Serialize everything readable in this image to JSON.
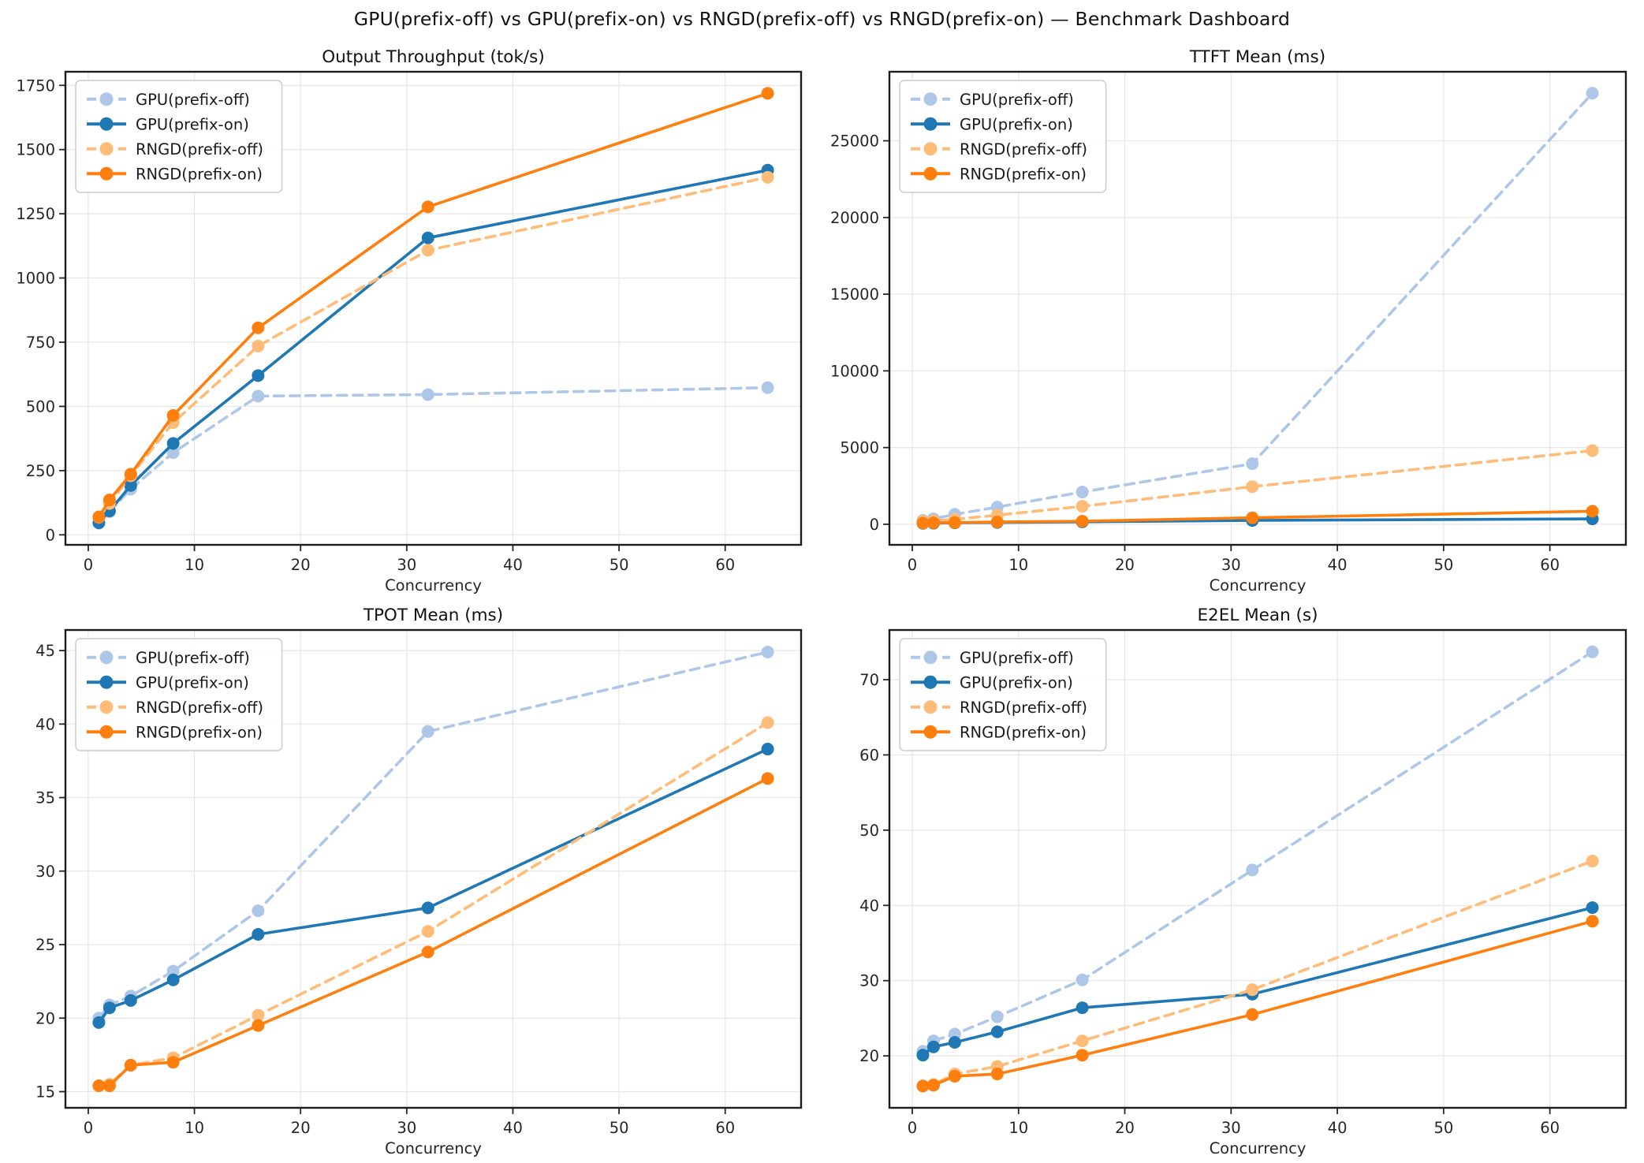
{
  "title": "GPU(prefix-off) vs GPU(prefix-on) vs RNGD(prefix-off) vs RNGD(prefix-on) — Benchmark Dashboard",
  "x_axis_label": "Concurrency",
  "concurrency_levels": [
    1,
    2,
    4,
    8,
    16,
    32,
    64
  ],
  "palette": {
    "gpu_prefix_off": "#aec7e8",
    "gpu_prefix_on": "#1f77b4",
    "rngd_prefix_off": "#ffbb78",
    "rngd_prefix_on": "#ff7f0e",
    "grid": "#e6e6e6",
    "spine": "#1c1c1c",
    "tick_text": "#262626",
    "title_text": "#111111"
  },
  "legend_labels": [
    "GPU(prefix-off)",
    "GPU(prefix-on)",
    "RNGD(prefix-off)",
    "RNGD(prefix-on)"
  ],
  "chart_data": [
    {
      "id": "throughput",
      "panel": "tl",
      "type": "line",
      "title": "Output Throughput (tok/s)",
      "xlabel": "Concurrency",
      "x": [
        1,
        2,
        4,
        8,
        16,
        32,
        64
      ],
      "xticks": [
        0,
        10,
        20,
        30,
        40,
        50,
        60
      ],
      "xlim": [
        -2.15,
        67.15
      ],
      "yticks": [
        0,
        250,
        500,
        750,
        1000,
        1250,
        1500,
        1750
      ],
      "ylim": [
        -39,
        1803
      ],
      "grid": true,
      "legend_position": "upper-left",
      "series": [
        {
          "name": "GPU(prefix-off)",
          "color": "#aec7e8",
          "line_style": "dashed",
          "values": [
            45,
            90,
            178,
            320,
            540,
            546,
            573
          ]
        },
        {
          "name": "GPU(prefix-on)",
          "color": "#1f77b4",
          "line_style": "solid",
          "values": [
            47,
            93,
            192,
            356,
            620,
            1156,
            1420
          ]
        },
        {
          "name": "RNGD(prefix-off)",
          "color": "#ffbb78",
          "line_style": "dashed",
          "values": [
            68,
            122,
            230,
            437,
            735,
            1108,
            1392
          ]
        },
        {
          "name": "RNGD(prefix-on)",
          "color": "#ff7f0e",
          "line_style": "solid",
          "values": [
            70,
            136,
            236,
            465,
            806,
            1277,
            1719
          ]
        }
      ]
    },
    {
      "id": "ttft",
      "panel": "tr",
      "type": "line",
      "title": "TTFT Mean (ms)",
      "xlabel": "Concurrency",
      "x": [
        1,
        2,
        4,
        8,
        16,
        32,
        64
      ],
      "xticks": [
        0,
        10,
        20,
        30,
        40,
        50,
        60
      ],
      "xlim": [
        -2.15,
        67.15
      ],
      "yticks": [
        0,
        5000,
        10000,
        15000,
        20000,
        25000
      ],
      "ylim": [
        -1342,
        29502
      ],
      "grid": true,
      "legend_position": "upper-left",
      "series": [
        {
          "name": "GPU(prefix-off)",
          "color": "#aec7e8",
          "line_style": "dashed",
          "values": [
            250,
            350,
            650,
            1120,
            2100,
            3950,
            28100
          ]
        },
        {
          "name": "GPU(prefix-on)",
          "color": "#1f77b4",
          "line_style": "solid",
          "values": [
            60,
            70,
            90,
            120,
            160,
            250,
            350
          ]
        },
        {
          "name": "RNGD(prefix-off)",
          "color": "#ffbb78",
          "line_style": "dashed",
          "values": [
            180,
            220,
            330,
            590,
            1170,
            2450,
            4800
          ]
        },
        {
          "name": "RNGD(prefix-on)",
          "color": "#ff7f0e",
          "line_style": "solid",
          "values": [
            80,
            90,
            110,
            150,
            200,
            420,
            850
          ]
        }
      ]
    },
    {
      "id": "tpot",
      "panel": "bl",
      "type": "line",
      "title": "TPOT Mean (ms)",
      "xlabel": "Concurrency",
      "x": [
        1,
        2,
        4,
        8,
        16,
        32,
        64
      ],
      "xticks": [
        0,
        10,
        20,
        30,
        40,
        50,
        60
      ],
      "xlim": [
        -2.15,
        67.15
      ],
      "yticks": [
        15,
        20,
        25,
        30,
        35,
        40,
        45
      ],
      "ylim": [
        13.9,
        46.4
      ],
      "grid": true,
      "legend_position": "upper-left",
      "series": [
        {
          "name": "GPU(prefix-off)",
          "color": "#aec7e8",
          "line_style": "dashed",
          "values": [
            20.0,
            20.9,
            21.5,
            23.2,
            27.3,
            39.5,
            44.9
          ]
        },
        {
          "name": "GPU(prefix-on)",
          "color": "#1f77b4",
          "line_style": "solid",
          "values": [
            19.7,
            20.7,
            21.2,
            22.6,
            25.7,
            27.5,
            38.3
          ]
        },
        {
          "name": "RNGD(prefix-off)",
          "color": "#ffbb78",
          "line_style": "dashed",
          "values": [
            15.4,
            15.5,
            16.8,
            17.3,
            20.2,
            25.9,
            40.1
          ]
        },
        {
          "name": "RNGD(prefix-on)",
          "color": "#ff7f0e",
          "line_style": "solid",
          "values": [
            15.4,
            15.4,
            16.8,
            17.0,
            19.5,
            24.5,
            36.3
          ]
        }
      ]
    },
    {
      "id": "e2el",
      "panel": "br",
      "type": "line",
      "title": "E2EL Mean (s)",
      "xlabel": "Concurrency",
      "x": [
        1,
        2,
        4,
        8,
        16,
        32,
        64
      ],
      "xticks": [
        0,
        10,
        20,
        30,
        40,
        50,
        60
      ],
      "xlim": [
        -2.15,
        67.15
      ],
      "yticks": [
        20,
        30,
        40,
        50,
        60,
        70
      ],
      "ylim": [
        13.1,
        76.6
      ],
      "grid": true,
      "legend_position": "upper-left",
      "series": [
        {
          "name": "GPU(prefix-off)",
          "color": "#aec7e8",
          "line_style": "dashed",
          "values": [
            20.6,
            22.0,
            22.9,
            25.2,
            30.1,
            44.7,
            73.7
          ]
        },
        {
          "name": "GPU(prefix-on)",
          "color": "#1f77b4",
          "line_style": "solid",
          "values": [
            20.1,
            21.2,
            21.8,
            23.2,
            26.4,
            28.2,
            39.7
          ]
        },
        {
          "name": "RNGD(prefix-off)",
          "color": "#ffbb78",
          "line_style": "dashed",
          "values": [
            16.0,
            16.2,
            17.6,
            18.6,
            22.0,
            28.8,
            45.9
          ]
        },
        {
          "name": "RNGD(prefix-on)",
          "color": "#ff7f0e",
          "line_style": "solid",
          "values": [
            16.0,
            16.1,
            17.3,
            17.6,
            20.1,
            25.5,
            37.9
          ]
        }
      ]
    }
  ]
}
